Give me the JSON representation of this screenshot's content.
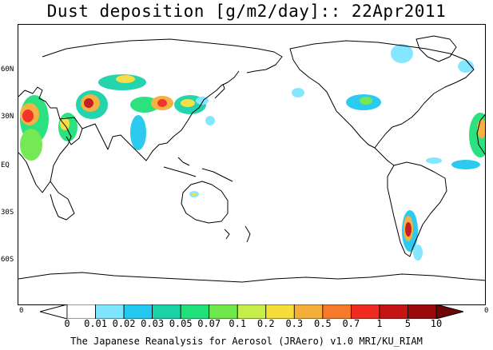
{
  "title": "Dust deposition [g/m2/day]:: 22Apr2011",
  "lat_labels": [
    "60N",
    "30N",
    "EQ",
    "30S",
    "60S"
  ],
  "colorbar": {
    "left_end_label": "0",
    "right_end_label": "0",
    "labels": [
      "0",
      "0.01",
      "0.02",
      "0.03",
      "0.05",
      "0.07",
      "0.1",
      "0.2",
      "0.3",
      "0.5",
      "0.7",
      "1",
      "5",
      "10"
    ],
    "colors": [
      "#ffffff",
      "#ffffff",
      "#7fe5ff",
      "#22c8f0",
      "#19d2a8",
      "#20e07a",
      "#6ee84a",
      "#c6ee4a",
      "#f5de3a",
      "#f5ae3a",
      "#f57a2a",
      "#f02a1e",
      "#c41414",
      "#9a0a0a",
      "#6e0606"
    ]
  },
  "footer": "The Japanese Reanalysis for Aerosol (JRAero) v1.0 MRI/KU_RIAM"
}
